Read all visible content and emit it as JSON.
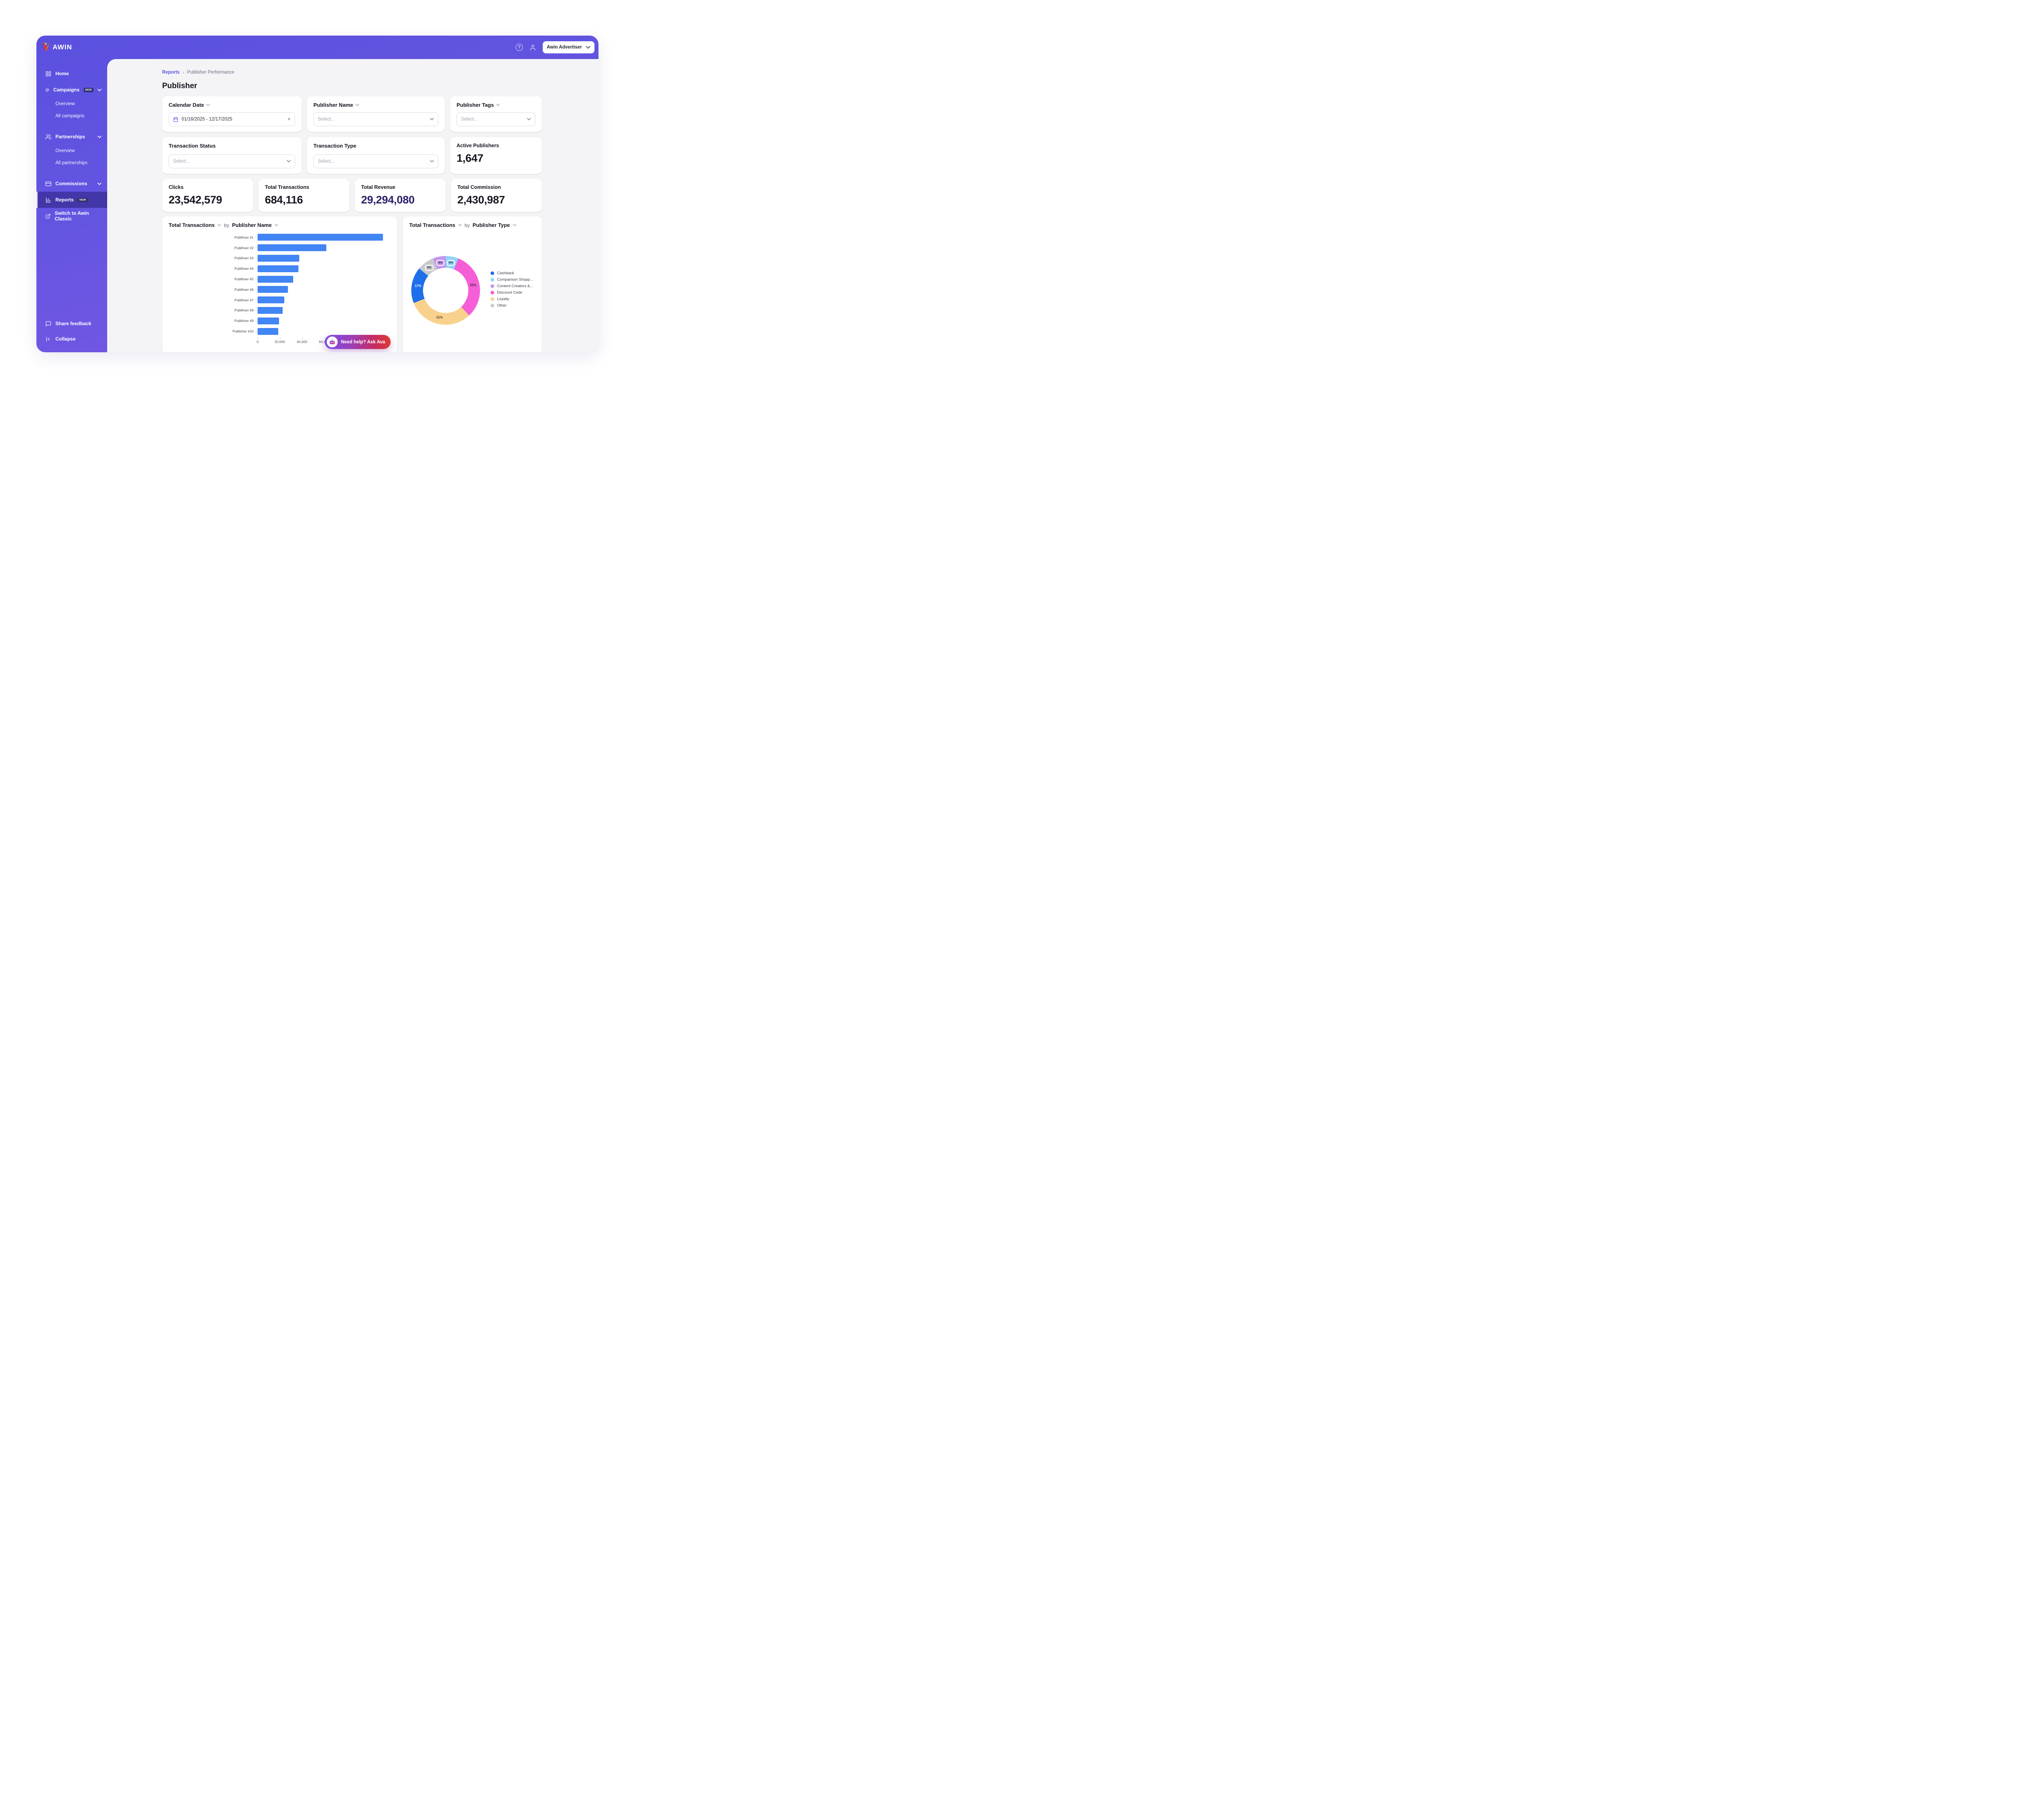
{
  "topbar": {
    "brand": "AWIN",
    "account_label": "Awin Advertiser"
  },
  "sidebar": {
    "items": [
      {
        "label": "Home"
      },
      {
        "label": "Campaigns",
        "badge": "NEW"
      },
      {
        "label": "Overview"
      },
      {
        "label": "All campaigns"
      },
      {
        "label": "Partnerships"
      },
      {
        "label": "Overview"
      },
      {
        "label": "All partnerships"
      },
      {
        "label": "Commissions"
      },
      {
        "label": "Reports",
        "badge": "NEW"
      },
      {
        "label": "Switch to Awin Classic"
      }
    ],
    "share_feedback": "Share feedback",
    "collapse": "Collapse"
  },
  "breadcrumb": {
    "parent": "Reports",
    "separator": "›",
    "current": "Publisher Performance"
  },
  "page_title": "Publisher",
  "filters": {
    "calendar_date": {
      "label": "Calendar Date",
      "value": "01/16/2025 - 12/17/2025"
    },
    "publisher_name": {
      "label": "Publisher Name",
      "placeholder": "Select..."
    },
    "publisher_tags": {
      "label": "Publisher Tags",
      "placeholder": "Select..."
    },
    "transaction_status": {
      "label": "Transaction Status",
      "placeholder": "Select..."
    },
    "transaction_type": {
      "label": "Transaction Type",
      "placeholder": "Select..."
    }
  },
  "stats": {
    "active_publishers": {
      "label": "Active Publishers",
      "value": "1,647"
    },
    "clicks": {
      "label": "Clicks",
      "value": "23,542,579"
    },
    "total_transactions": {
      "label": "Total Transactions",
      "value": "684,116"
    },
    "total_revenue": {
      "label": "Total Revenue",
      "value": "29,294,080"
    },
    "total_commission": {
      "label": "Total Commission",
      "value": "2,430,987"
    }
  },
  "chart_data": [
    {
      "type": "bar",
      "orientation": "horizontal",
      "title": "Total Transactions",
      "by_label": "by",
      "dimension": "Publisher Name",
      "categories": [
        "Publihser #1",
        "Publihser #2",
        "Publihser #3",
        "Publihser #4",
        "Publihser #5",
        "Publihser #6",
        "Publihser #7",
        "Publihser #8",
        "Publihser #9",
        "Publisher #10"
      ],
      "values": [
        113000,
        62000,
        37500,
        37000,
        32000,
        27500,
        24000,
        22500,
        19500,
        18500
      ],
      "xlim": [
        0,
        120000
      ],
      "xticks": [
        {
          "value": 0,
          "label": "0"
        },
        {
          "value": 20000,
          "label": "20,000"
        },
        {
          "value": 40000,
          "label": "40,000"
        },
        {
          "value": 60000,
          "label": "60,000"
        },
        {
          "value": 80000,
          "label": "80,000"
        },
        {
          "value": 100000,
          "label": "100,000"
        }
      ],
      "bar_color": "#4285F4",
      "grid": false
    },
    {
      "type": "pie",
      "style": "donut",
      "title": "Total Transactions",
      "by_label": "by",
      "dimension": "Publisher Type",
      "segments": [
        {
          "label": "Cashback",
          "pct": 17,
          "color": "#1E6FEA",
          "label_color": "#FFFFFF"
        },
        {
          "label": "Comparison Shopp...",
          "pct": 6,
          "color": "#8FD3F5",
          "label_color": "#2B2F3A"
        },
        {
          "label": "Content Creators &...",
          "pct": 6,
          "color": "#C493F0",
          "label_color": "#2B2F3A"
        },
        {
          "label": "Discount Code",
          "pct": 32,
          "color": "#F55ED6",
          "label_color": "#43273E"
        },
        {
          "label": "Loyalty",
          "pct": 31,
          "color": "#F8D28C",
          "label_color": "#4A3A22"
        },
        {
          "label": "Other",
          "pct": 8,
          "color": "#C8C8CD",
          "label_color": "#2B2F3A"
        }
      ],
      "draw_order": [
        1,
        3,
        4,
        0,
        5,
        2
      ],
      "legend_position": "right"
    }
  ],
  "chat": {
    "label": "Need help? Ask Ava"
  },
  "icons": {
    "help_glyph": "?",
    "clear_glyph": "✕"
  }
}
